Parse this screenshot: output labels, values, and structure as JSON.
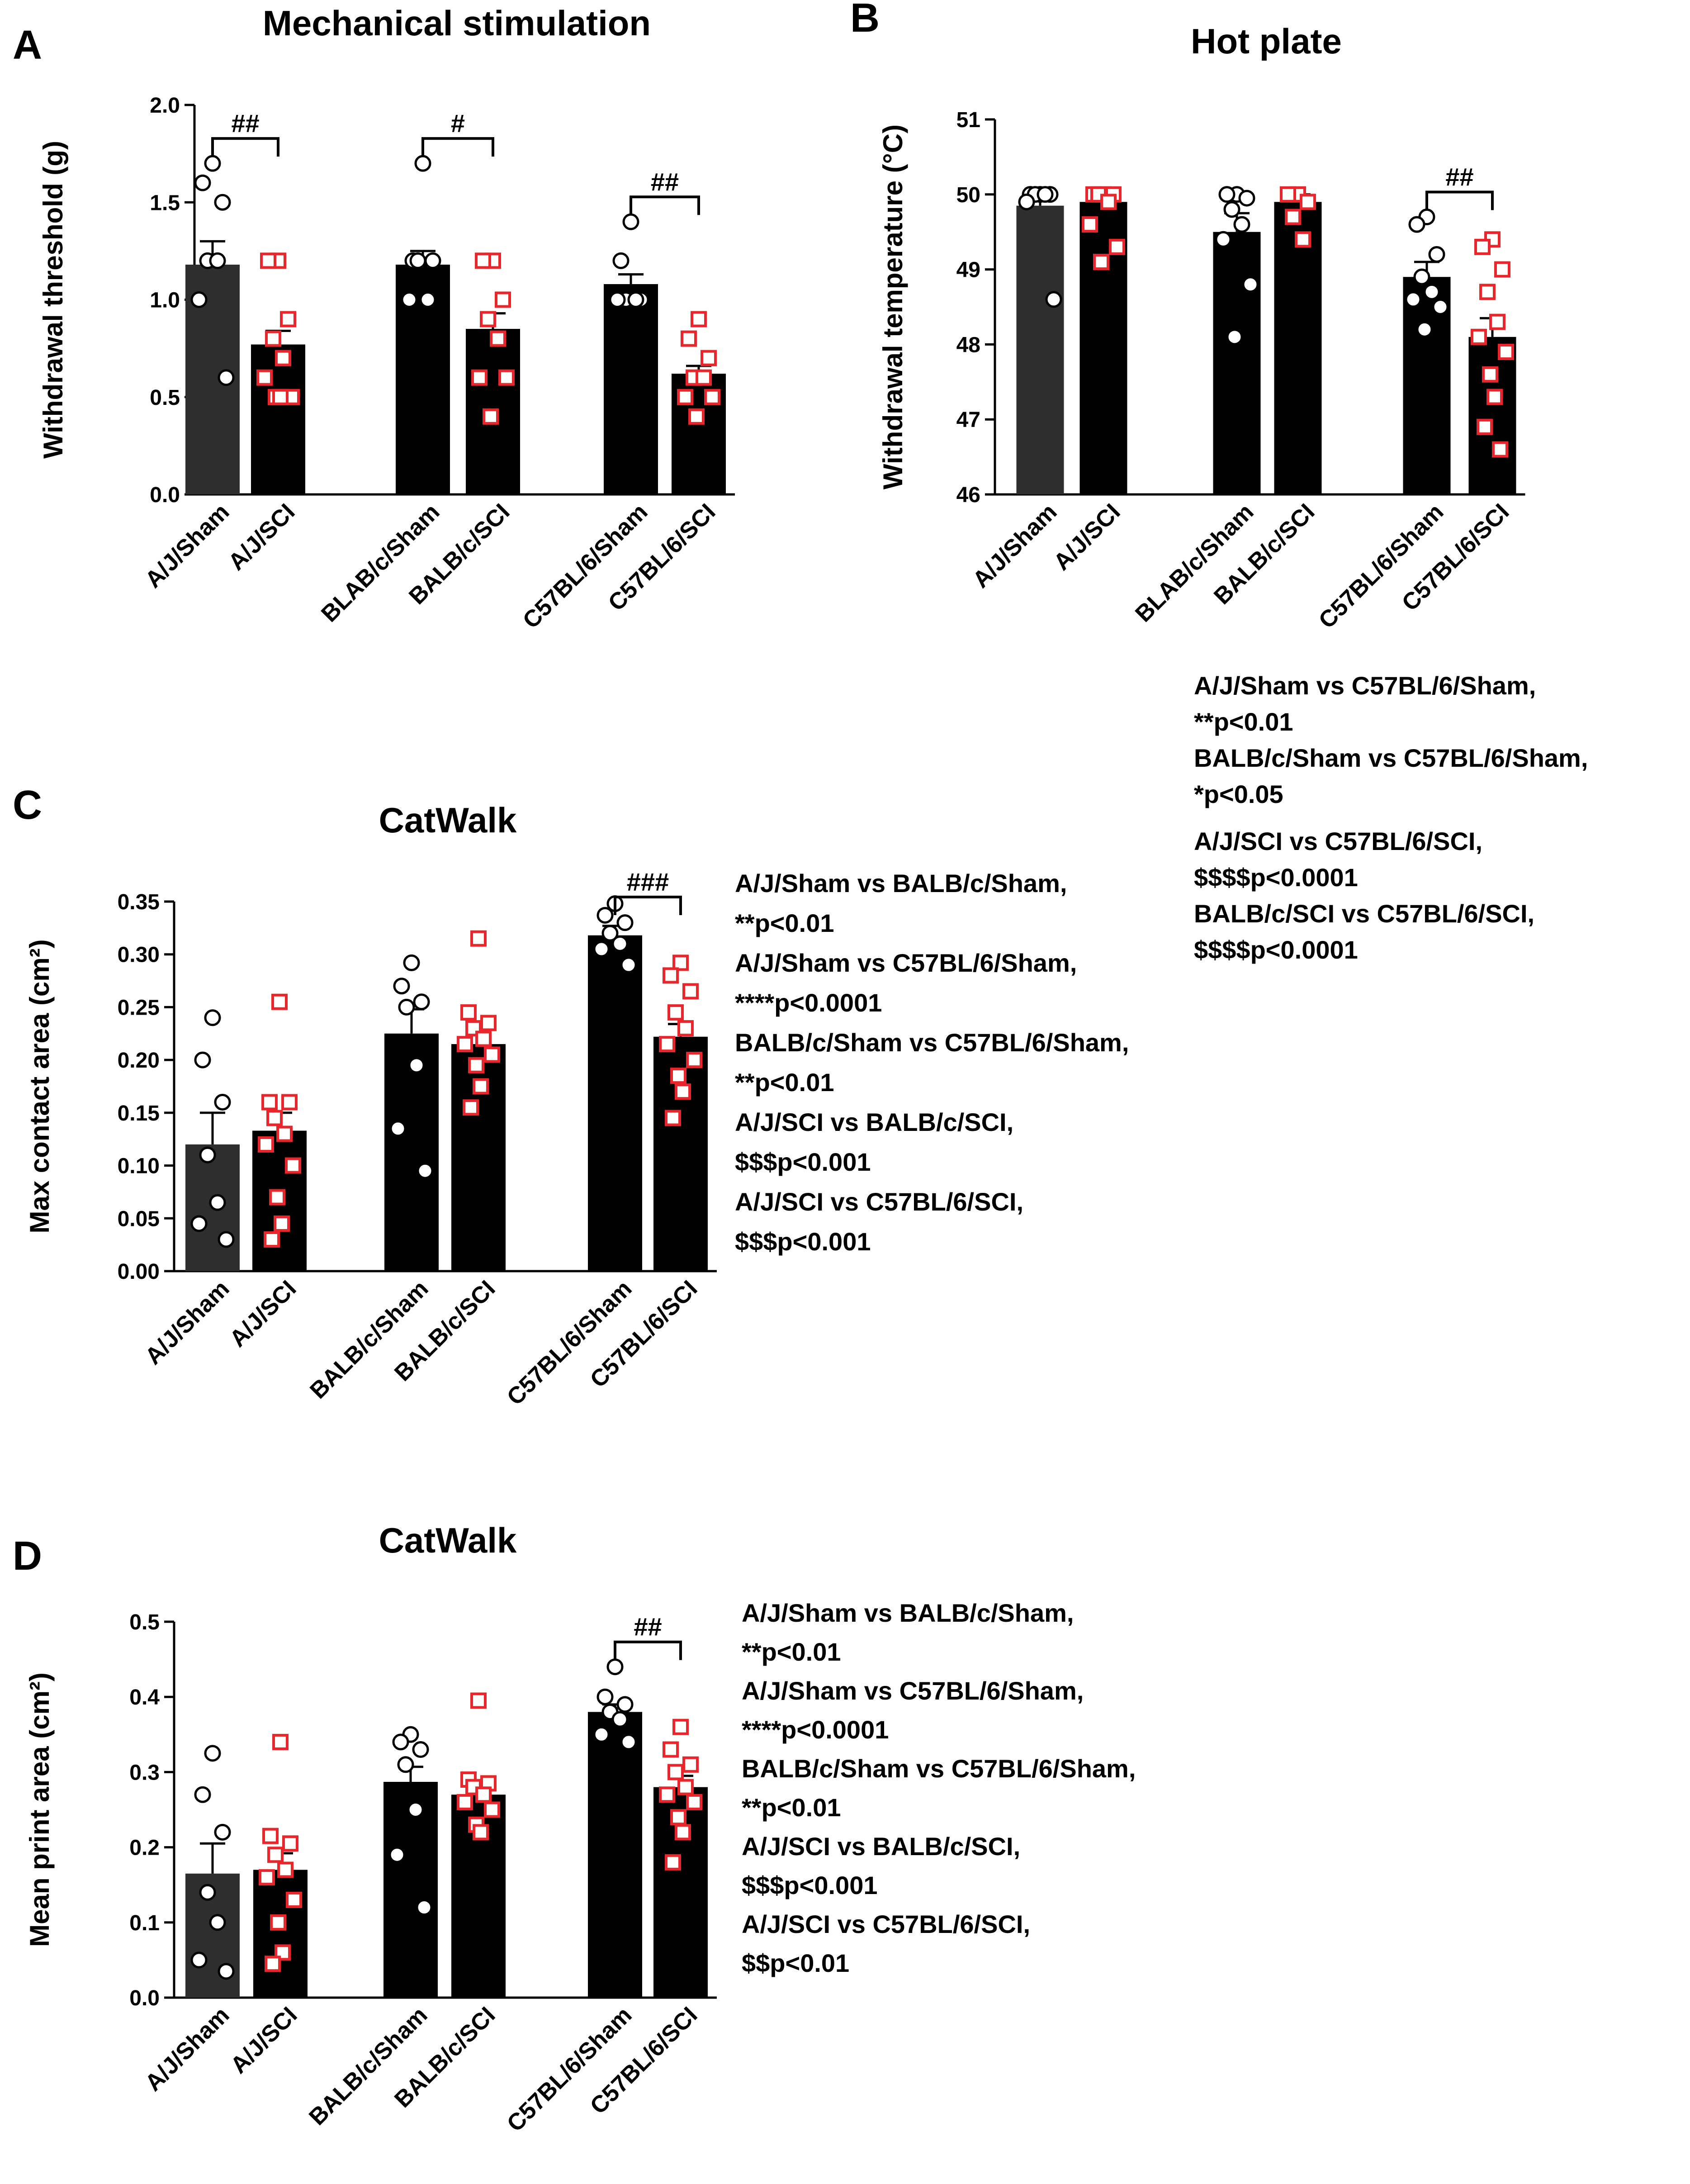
{
  "figure": {
    "panels": [
      {
        "letter": "A",
        "stats_lines": []
      },
      {
        "letter": "B",
        "stats_lines": [
          "A/J/Sham vs C57BL/6/Sham,",
          "**p<0.01",
          "BALB/c/Sham vs C57BL/6/Sham,",
          "*p<0.05",
          "A/J/SCI vs C57BL/6/SCI,",
          "$$$$p<0.0001",
          "BALB/c/SCI vs C57BL/6/SCI,",
          "$$$$p<0.0001"
        ]
      },
      {
        "letter": "C",
        "stats_lines": [
          "A/J/Sham vs BALB/c/Sham,",
          "**p<0.01",
          "A/J/Sham vs C57BL/6/Sham,",
          "****p<0.0001",
          "BALB/c/Sham vs C57BL/6/Sham,",
          "**p<0.01",
          "A/J/SCI vs BALB/c/SCI,",
          "$$$p<0.001",
          "A/J/SCI vs C57BL/6/SCI,",
          "$$$p<0.001"
        ]
      },
      {
        "letter": "D",
        "stats_lines": [
          "A/J/Sham vs BALB/c/Sham,",
          "**p<0.01",
          "A/J/Sham vs C57BL/6/Sham,",
          "****p<0.0001",
          "BALB/c/Sham vs C57BL/6/Sham,",
          "**p<0.01",
          "A/J/SCI vs BALB/c/SCI,",
          "$$$p<0.001",
          "A/J/SCI vs C57BL/6/SCI,",
          "$$p<0.01"
        ]
      }
    ]
  },
  "colors": {
    "bar_dark": "#2e2e2e",
    "bar": "#000000",
    "sham_marker": "#000000",
    "sci_marker": "#e8262b"
  },
  "chart_data": [
    {
      "type": "bar",
      "title": "Mechanical stimulation",
      "xlabel": "",
      "ylabel": "Withdrawal threshold (g)",
      "ylim": [
        0,
        2.0
      ],
      "yticks": [
        0.0,
        0.5,
        1.0,
        1.5,
        2.0
      ],
      "ytick_labels": [
        "0.0",
        "0.5",
        "1.0",
        "1.5",
        "2.0"
      ],
      "categories": [
        "A/J/Sham",
        "A/J/SCI",
        "BLAB/c/Sham",
        "BALB/c/SCI",
        "C57BL/6/Sham",
        "C57BL/6/SCI"
      ],
      "values": [
        1.18,
        0.77,
        1.18,
        0.85,
        1.08,
        0.62
      ],
      "errors": [
        0.12,
        0.07,
        0.07,
        0.08,
        0.05,
        0.04
      ],
      "points": [
        [
          1.7,
          1.6,
          1.5,
          1.2,
          1.2,
          1.0,
          0.6
        ],
        [
          1.2,
          1.2,
          0.9,
          0.8,
          0.7,
          0.6,
          0.5,
          0.5,
          0.5
        ],
        [
          1.7,
          1.2,
          1.2,
          1.2,
          1.0,
          1.0
        ],
        [
          1.2,
          1.2,
          1.0,
          0.9,
          0.8,
          0.6,
          0.6,
          0.4
        ],
        [
          1.4,
          1.2,
          1.0,
          1.0,
          1.0,
          1.0
        ],
        [
          0.9,
          0.8,
          0.7,
          0.6,
          0.6,
          0.5,
          0.5,
          0.4
        ]
      ],
      "brackets": [
        {
          "from": 0,
          "to": 1,
          "label": "##"
        },
        {
          "from": 2,
          "to": 3,
          "label": "#"
        },
        {
          "from": 4,
          "to": 5,
          "label": "##"
        }
      ]
    },
    {
      "type": "bar",
      "title": "Hot plate",
      "xlabel": "",
      "ylabel": "Withdrawal temperature (°C)",
      "ylim": [
        46,
        51
      ],
      "yticks": [
        46,
        47,
        48,
        49,
        50,
        51
      ],
      "ytick_labels": [
        "46",
        "47",
        "48",
        "49",
        "50",
        "51"
      ],
      "categories": [
        "A/J/Sham",
        "A/J/SCI",
        "BLAB/c/Sham",
        "BALB/c/SCI",
        "C57BL/6/Sham",
        "C57BL/6/SCI"
      ],
      "values": [
        49.85,
        49.9,
        49.5,
        49.9,
        48.9,
        48.1
      ],
      "errors": [
        0.18,
        0.1,
        0.25,
        0.1,
        0.2,
        0.25
      ],
      "points": [
        [
          50.0,
          50.0,
          50.0,
          50.0,
          50.0,
          49.9,
          48.6
        ],
        [
          50.0,
          50.0,
          50.0,
          50.0,
          49.9,
          49.6,
          49.3,
          49.1
        ],
        [
          50.0,
          50.0,
          49.95,
          49.8,
          49.6,
          49.4,
          48.8,
          48.1
        ],
        [
          50.0,
          50.0,
          49.9,
          49.7,
          49.4
        ],
        [
          49.7,
          49.6,
          49.2,
          48.9,
          48.7,
          48.6,
          48.5,
          48.2
        ],
        [
          49.4,
          49.3,
          49.0,
          48.7,
          48.3,
          48.1,
          47.9,
          47.6,
          47.3,
          46.9,
          46.6
        ]
      ],
      "brackets": [
        {
          "from": 4,
          "to": 5,
          "label": "##"
        }
      ]
    },
    {
      "type": "bar",
      "title": "CatWalk",
      "xlabel": "",
      "ylabel": "Max contact area (cm²)",
      "ylim": [
        0,
        0.35
      ],
      "yticks": [
        0.0,
        0.05,
        0.1,
        0.15,
        0.2,
        0.25,
        0.3,
        0.35
      ],
      "ytick_labels": [
        "0.00",
        "0.05",
        "0.10",
        "0.15",
        "0.20",
        "0.25",
        "0.30",
        "0.35"
      ],
      "categories": [
        "A/J/Sham",
        "A/J/SCI",
        "BALB/c/Sham",
        "BALB/c/SCI",
        "C57BL/6/Sham",
        "C57BL/6/SCI"
      ],
      "values": [
        0.12,
        0.133,
        0.225,
        0.215,
        0.318,
        0.222
      ],
      "errors": [
        0.03,
        0.017,
        0.023,
        0.011,
        0.009,
        0.012
      ],
      "points": [
        [
          0.24,
          0.2,
          0.16,
          0.11,
          0.065,
          0.045,
          0.03
        ],
        [
          0.255,
          0.16,
          0.16,
          0.145,
          0.13,
          0.12,
          0.1,
          0.07,
          0.045,
          0.03
        ],
        [
          0.292,
          0.27,
          0.255,
          0.25,
          0.195,
          0.135,
          0.095
        ],
        [
          0.315,
          0.245,
          0.235,
          0.23,
          0.22,
          0.215,
          0.205,
          0.195,
          0.175,
          0.155
        ],
        [
          0.348,
          0.337,
          0.33,
          0.32,
          0.31,
          0.305,
          0.29
        ],
        [
          0.292,
          0.28,
          0.265,
          0.245,
          0.23,
          0.215,
          0.2,
          0.185,
          0.17,
          0.145
        ]
      ],
      "brackets": [
        {
          "from": 4,
          "to": 5,
          "label": "###"
        }
      ]
    },
    {
      "type": "bar",
      "title": "CatWalk",
      "xlabel": "",
      "ylabel": "Mean print area (cm²)",
      "ylim": [
        0,
        0.5
      ],
      "yticks": [
        0.0,
        0.1,
        0.2,
        0.3,
        0.4,
        0.5
      ],
      "ytick_labels": [
        "0.0",
        "0.1",
        "0.2",
        "0.3",
        "0.4",
        "0.5"
      ],
      "categories": [
        "A/J/Sham",
        "A/J/SCI",
        "BALB/c/Sham",
        "BALB/c/SCI",
        "C57BL/6/Sham",
        "C57BL/6/SCI"
      ],
      "values": [
        0.165,
        0.17,
        0.287,
        0.27,
        0.38,
        0.28
      ],
      "errors": [
        0.04,
        0.022,
        0.02,
        0.01,
        0.01,
        0.015
      ],
      "points": [
        [
          0.325,
          0.27,
          0.22,
          0.14,
          0.1,
          0.05,
          0.035
        ],
        [
          0.34,
          0.215,
          0.205,
          0.19,
          0.17,
          0.16,
          0.13,
          0.1,
          0.06,
          0.045
        ],
        [
          0.35,
          0.34,
          0.33,
          0.31,
          0.25,
          0.19,
          0.12
        ],
        [
          0.395,
          0.29,
          0.285,
          0.28,
          0.27,
          0.26,
          0.25,
          0.23,
          0.22
        ],
        [
          0.44,
          0.4,
          0.39,
          0.38,
          0.37,
          0.35,
          0.34
        ],
        [
          0.36,
          0.33,
          0.31,
          0.3,
          0.28,
          0.27,
          0.26,
          0.24,
          0.22,
          0.18
        ]
      ],
      "brackets": [
        {
          "from": 4,
          "to": 5,
          "label": "##"
        }
      ]
    }
  ]
}
